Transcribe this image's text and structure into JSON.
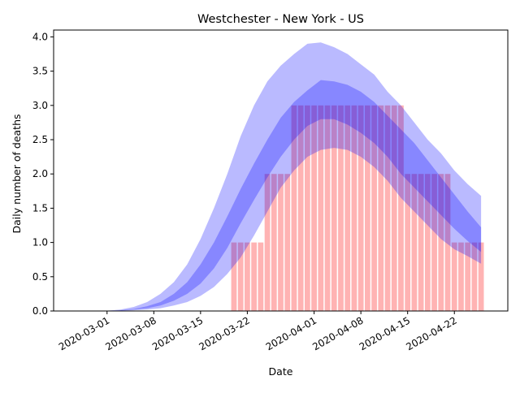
{
  "chart_data": {
    "type": "area",
    "title": "Westchester - New York - US",
    "xlabel": "Date",
    "ylabel": "Daily number of deaths",
    "ylim": [
      0,
      4.1
    ],
    "yticks": [
      "0.0",
      "0.5",
      "1.0",
      "1.5",
      "2.0",
      "2.5",
      "3.0",
      "3.5",
      "4.0"
    ],
    "xticks": [
      "2020-03-01",
      "2020-03-08",
      "2020-03-15",
      "2020-03-22",
      "2020-04-01",
      "2020-04-08",
      "2020-04-15",
      "2020-04-22"
    ],
    "x_start_date": "2020-02-22",
    "x_end_date": "2020-04-30",
    "grid": false,
    "legend": "none",
    "colors": {
      "bars": "#ff9999",
      "bands": "#0000ff",
      "axes": "#000000"
    },
    "bars": {
      "dates": [
        "2020-03-20",
        "2020-03-21",
        "2020-03-22",
        "2020-03-23",
        "2020-03-24",
        "2020-03-25",
        "2020-03-26",
        "2020-03-27",
        "2020-03-28",
        "2020-03-29",
        "2020-03-30",
        "2020-03-31",
        "2020-04-01",
        "2020-04-02",
        "2020-04-03",
        "2020-04-04",
        "2020-04-05",
        "2020-04-06",
        "2020-04-07",
        "2020-04-08",
        "2020-04-09",
        "2020-04-10",
        "2020-04-11",
        "2020-04-12",
        "2020-04-13",
        "2020-04-14",
        "2020-04-15",
        "2020-04-16",
        "2020-04-17",
        "2020-04-18",
        "2020-04-19",
        "2020-04-20",
        "2020-04-21",
        "2020-04-22",
        "2020-04-23",
        "2020-04-24",
        "2020-04-25",
        "2020-04-26"
      ],
      "values": [
        1,
        1,
        1,
        1,
        1,
        2,
        2,
        2,
        2,
        3,
        3,
        3,
        3,
        3,
        3,
        3,
        3,
        3,
        3,
        3,
        3,
        3,
        3,
        3,
        3,
        3,
        2,
        2,
        2,
        2,
        2,
        2,
        2,
        1,
        1,
        1,
        1,
        1
      ]
    },
    "series": [
      {
        "dates": [
          "2020-02-27",
          "2020-03-01",
          "2020-03-03",
          "2020-03-05",
          "2020-03-07",
          "2020-03-09",
          "2020-03-11",
          "2020-03-13",
          "2020-03-15",
          "2020-03-17",
          "2020-03-19",
          "2020-03-21",
          "2020-03-23",
          "2020-03-25",
          "2020-03-27",
          "2020-03-29",
          "2020-03-31",
          "2020-04-02",
          "2020-04-04",
          "2020-04-06",
          "2020-04-08",
          "2020-04-10",
          "2020-04-12",
          "2020-04-14",
          "2020-04-16",
          "2020-04-18",
          "2020-04-20",
          "2020-04-22",
          "2020-04-24",
          "2020-04-26"
        ],
        "lower_outer": [
          0,
          0,
          0.003,
          0.01,
          0.02,
          0.04,
          0.08,
          0.13,
          0.22,
          0.35,
          0.54,
          0.78,
          1.1,
          1.45,
          1.8,
          2.05,
          2.25,
          2.35,
          2.38,
          2.35,
          2.25,
          2.1,
          1.9,
          1.65,
          1.45,
          1.25,
          1.05,
          0.9,
          0.8,
          0.69
        ],
        "lower_inner": [
          0,
          0,
          0.005,
          0.02,
          0.04,
          0.08,
          0.15,
          0.25,
          0.4,
          0.62,
          0.92,
          1.28,
          1.62,
          1.95,
          2.25,
          2.5,
          2.7,
          2.8,
          2.8,
          2.72,
          2.6,
          2.45,
          2.25,
          2.0,
          1.8,
          1.6,
          1.4,
          1.2,
          1.02,
          0.86
        ],
        "upper_inner": [
          0,
          0,
          0.01,
          0.03,
          0.07,
          0.13,
          0.25,
          0.42,
          0.68,
          1.0,
          1.38,
          1.78,
          2.15,
          2.5,
          2.82,
          3.05,
          3.22,
          3.37,
          3.35,
          3.3,
          3.2,
          3.05,
          2.85,
          2.65,
          2.45,
          2.2,
          1.95,
          1.7,
          1.45,
          1.22
        ],
        "upper_outer": [
          0,
          0.005,
          0.02,
          0.06,
          0.13,
          0.25,
          0.42,
          0.68,
          1.05,
          1.5,
          2.0,
          2.55,
          3.0,
          3.35,
          3.58,
          3.75,
          3.9,
          3.92,
          3.85,
          3.75,
          3.6,
          3.45,
          3.2,
          3.0,
          2.75,
          2.5,
          2.3,
          2.05,
          1.85,
          1.68
        ]
      }
    ]
  }
}
